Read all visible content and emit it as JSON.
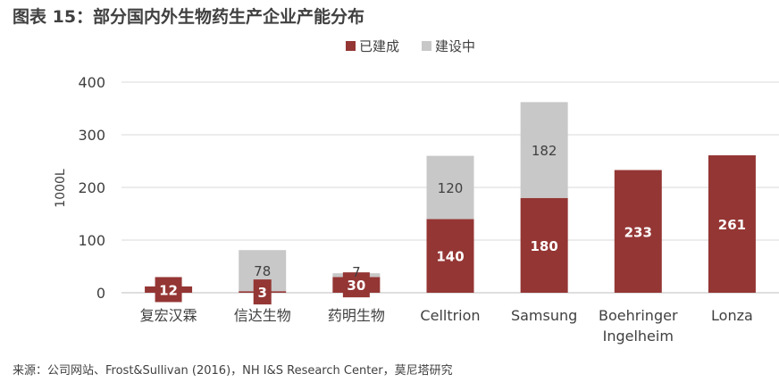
{
  "figure_title": "图表 15：部分国内外生物药生产企业产能分布",
  "source_note": "来源：公司网站、Frost&Sullivan (2016)，NH I&S Research Center，莫尼塔研究",
  "colors": {
    "built": "#943634",
    "building": "#c8c8c8",
    "axis_text": "#404040",
    "grid": "#d9d9d9"
  },
  "chart_data": {
    "type": "bar",
    "stacked": true,
    "title": "",
    "xlabel": "",
    "ylabel": "1000L",
    "ylim": [
      0,
      400
    ],
    "yticks": [
      0,
      100,
      200,
      300,
      400
    ],
    "grid": true,
    "legend_position": "top-right",
    "categories": [
      "复宏汉霖",
      "信达生物",
      "药明生物",
      "Celltrion",
      "Samsung",
      "Boehringer Ingelheim",
      "Lonza"
    ],
    "series": [
      {
        "name": "已建成",
        "color": "#943634",
        "values": [
          12,
          3,
          30,
          140,
          180,
          233,
          261
        ],
        "labels": [
          "12",
          "3",
          "30",
          "140",
          "180",
          "233",
          "261"
        ]
      },
      {
        "name": "建设中",
        "color": "#c8c8c8",
        "values": [
          0,
          78,
          7,
          120,
          182,
          0,
          0
        ],
        "labels": [
          "",
          "78",
          "7",
          "120",
          "182",
          "",
          ""
        ]
      }
    ]
  }
}
